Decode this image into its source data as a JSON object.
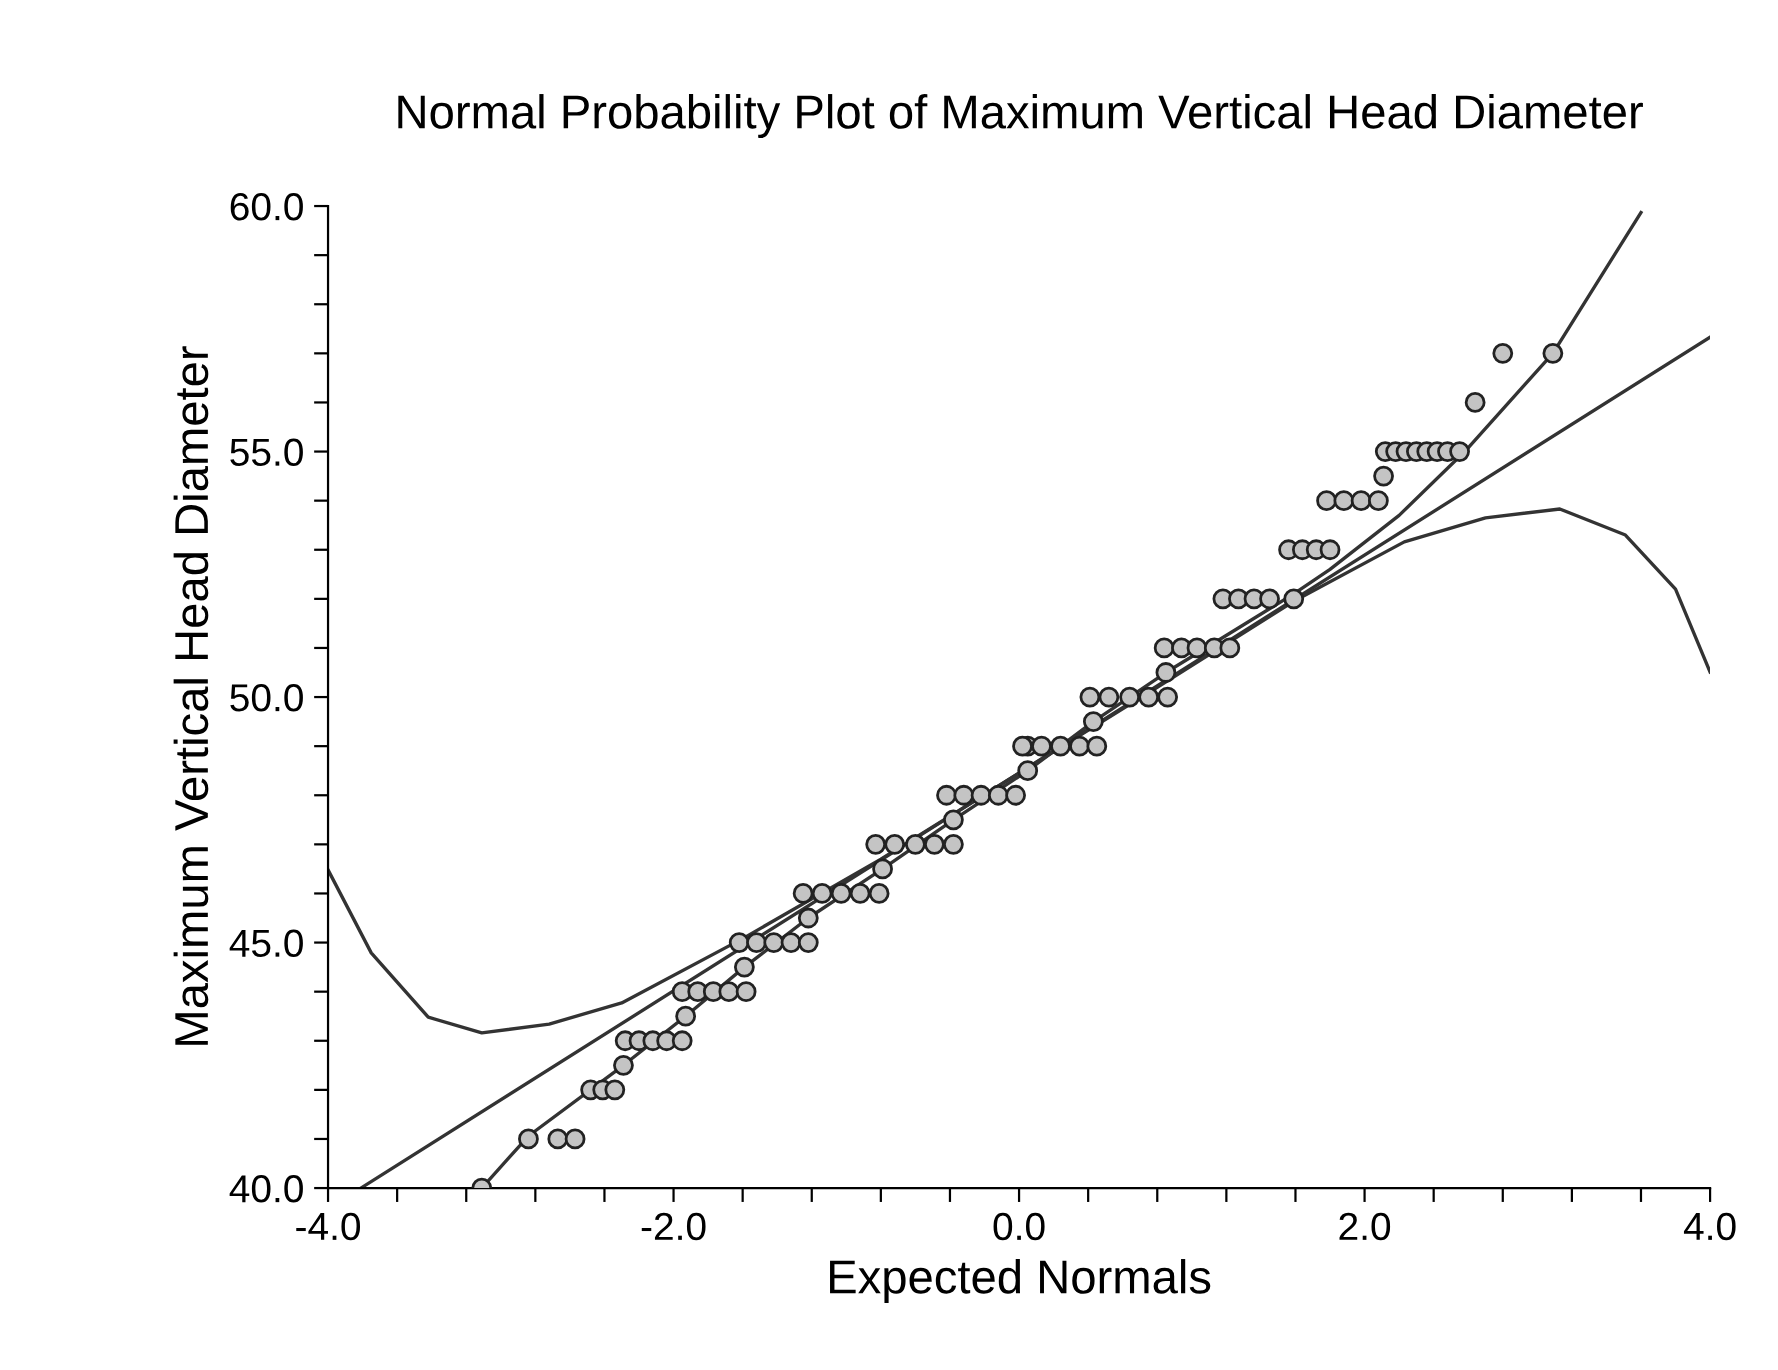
{
  "chart_data": {
    "type": "scatter",
    "title": "Normal Probability Plot of Maximum Vertical Head Diameter",
    "xlabel": "Expected Normals",
    "ylabel": "Maximum Vertical Head Diameter",
    "xlim": [
      -4,
      4
    ],
    "ylim": [
      40,
      60
    ],
    "xticks": [
      {
        "value": -4,
        "label": "-4.0"
      },
      {
        "value": -3.6,
        "label": null
      },
      {
        "value": -3.2,
        "label": null
      },
      {
        "value": -2.8,
        "label": null
      },
      {
        "value": -2.4,
        "label": null
      },
      {
        "value": -2,
        "label": "-2.0"
      },
      {
        "value": -1.6,
        "label": null
      },
      {
        "value": -1.2,
        "label": null
      },
      {
        "value": -0.8,
        "label": null
      },
      {
        "value": -0.4,
        "label": null
      },
      {
        "value": 0,
        "label": "0.0"
      },
      {
        "value": 0.4,
        "label": null
      },
      {
        "value": 0.8,
        "label": null
      },
      {
        "value": 1.2,
        "label": null
      },
      {
        "value": 1.6,
        "label": null
      },
      {
        "value": 2,
        "label": "2.0"
      },
      {
        "value": 2.4,
        "label": null
      },
      {
        "value": 2.8,
        "label": null
      },
      {
        "value": 3.2,
        "label": null
      },
      {
        "value": 3.6,
        "label": null
      },
      {
        "value": 4,
        "label": "4.0"
      }
    ],
    "yticks": [
      {
        "value": 40,
        "label": "40.0"
      },
      {
        "value": 41,
        "label": null
      },
      {
        "value": 42,
        "label": null
      },
      {
        "value": 43,
        "label": null
      },
      {
        "value": 44,
        "label": null
      },
      {
        "value": 45,
        "label": "45.0"
      },
      {
        "value": 46,
        "label": null
      },
      {
        "value": 47,
        "label": null
      },
      {
        "value": 48,
        "label": null
      },
      {
        "value": 49,
        "label": null
      },
      {
        "value": 50,
        "label": "50.0"
      },
      {
        "value": 51,
        "label": null
      },
      {
        "value": 52,
        "label": null
      },
      {
        "value": 53,
        "label": null
      },
      {
        "value": 54,
        "label": null
      },
      {
        "value": 55,
        "label": "55.0"
      },
      {
        "value": 56,
        "label": null
      },
      {
        "value": 57,
        "label": null
      },
      {
        "value": 58,
        "label": null
      },
      {
        "value": 59,
        "label": null
      },
      {
        "value": 60,
        "label": "60.0"
      }
    ],
    "grid": false,
    "legend": false,
    "series": [
      {
        "marker": "circle",
        "color": "#c4c4c4",
        "x": [
          -3.11,
          -2.84,
          -2.67,
          -2.57,
          -2.48,
          -2.41,
          -2.34,
          -2.29,
          -2.28,
          -2.2,
          -2.12,
          -2.04,
          -1.95,
          -1.93,
          -1.95,
          -1.86,
          -1.77,
          -1.68,
          -1.58,
          -1.59,
          -1.62,
          -1.52,
          -1.42,
          -1.32,
          -1.22,
          -1.22,
          -1.25,
          -1.14,
          -1.03,
          -0.92,
          -0.81,
          -0.79,
          -0.83,
          -0.72,
          -0.6,
          -0.49,
          -0.38,
          -0.38,
          -0.42,
          -0.32,
          -0.22,
          -0.12,
          -0.02,
          0.05,
          0.05,
          0.02,
          0.13,
          0.24,
          0.35,
          0.45,
          0.43,
          0.41,
          0.52,
          0.64,
          0.75,
          0.86,
          0.85,
          0.84,
          0.94,
          1.03,
          1.13,
          1.22,
          1.18,
          1.27,
          1.36,
          1.45,
          1.59,
          1.56,
          1.64,
          1.72,
          1.8,
          1.78,
          1.88,
          1.98,
          2.08,
          2.11,
          2.12,
          2.18,
          2.24,
          2.3,
          2.36,
          2.42,
          2.48,
          2.55,
          2.64,
          2.8,
          3.09
        ],
        "values": [
          40,
          41,
          41,
          41,
          42,
          42,
          42,
          42.5,
          43,
          43,
          43,
          43,
          43,
          43.5,
          44,
          44,
          44,
          44,
          44,
          44.5,
          45,
          45,
          45,
          45,
          45,
          45.5,
          46,
          46,
          46,
          46,
          46,
          46.5,
          47,
          47,
          47,
          47,
          47,
          47.5,
          48,
          48,
          48,
          48,
          48,
          48.5,
          49,
          49,
          49,
          49,
          49,
          49,
          49.5,
          50,
          50,
          50,
          50,
          50,
          50.5,
          51,
          51,
          51,
          51,
          51,
          52,
          52,
          52,
          52,
          52,
          53,
          53,
          53,
          53,
          54,
          54,
          54,
          54,
          54.5,
          55,
          55,
          55,
          55,
          55,
          55,
          55,
          55,
          56,
          57,
          57
        ]
      },
      {
        "type": "line",
        "marker": "none",
        "color": "#333333",
        "x": [
          -3.81,
          4
        ],
        "values": [
          40,
          57.33
        ]
      },
      {
        "type": "line",
        "marker": "none",
        "color": "#333333",
        "x": [
          -4,
          -3.75,
          -3.42,
          -3.11,
          -2.72,
          -2.3,
          -1.6,
          -0.8,
          0,
          0.8,
          1.59,
          2.23,
          2.7,
          3.13,
          3.51,
          3.8,
          4
        ],
        "values": [
          46.48,
          44.79,
          43.48,
          43.16,
          43.34,
          43.77,
          45.08,
          46.7,
          48.45,
          50.2,
          51.95,
          53.16,
          53.65,
          53.83,
          53.3,
          52.2,
          50.51
        ]
      },
      {
        "type": "line",
        "marker": "none",
        "color": "#333333",
        "x": [
          -3.11,
          -2.84,
          -2.29,
          -1.93,
          -1.59,
          -1.22,
          -0.79,
          -0.38,
          0.05,
          0.43,
          0.85,
          1.22,
          1.59,
          1.8,
          2.2,
          2.58,
          3.09,
          3.6
        ],
        "values": [
          40,
          41.06,
          42.5,
          43.5,
          44.5,
          45.5,
          46.5,
          47.5,
          48.5,
          49.5,
          50.5,
          51.3,
          52.1,
          52.6,
          53.7,
          55,
          57,
          59.87
        ]
      }
    ]
  }
}
